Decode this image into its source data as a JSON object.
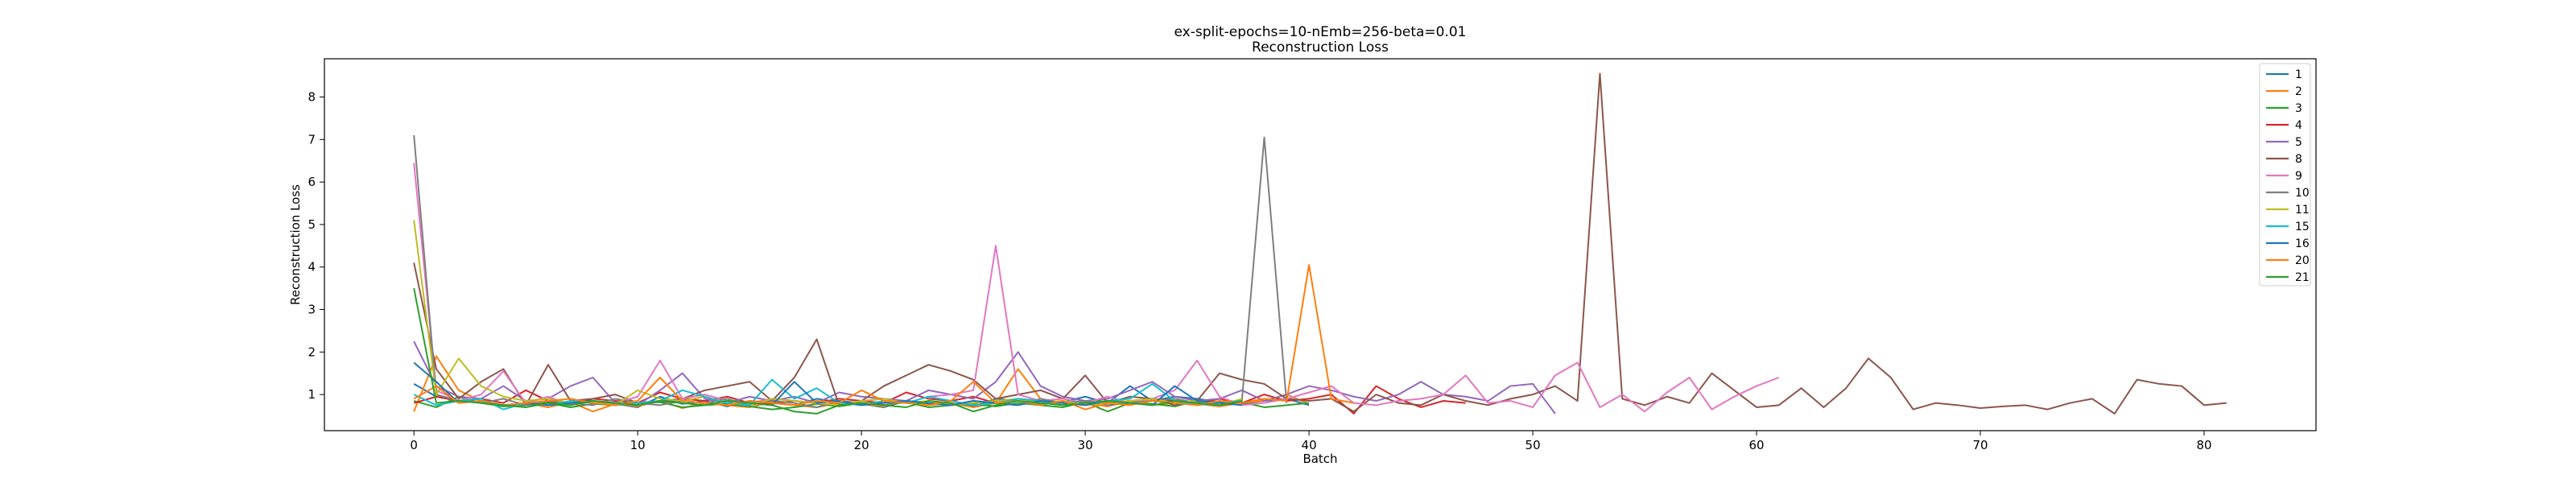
{
  "chart_data": {
    "type": "line",
    "title": "ex-split-epochs=10-nEmb=256-beta=0.01",
    "subtitle": "Reconstruction Loss",
    "xlabel": "Batch",
    "ylabel": "Reconstruction Loss",
    "xlim": [
      -4,
      85
    ],
    "ylim": [
      0.15,
      8.9
    ],
    "xticks": [
      0,
      10,
      20,
      30,
      40,
      50,
      60,
      70,
      80
    ],
    "yticks": [
      1,
      2,
      3,
      4,
      5,
      6,
      7,
      8
    ],
    "grid": false,
    "legend_position": "top-right",
    "series": [
      {
        "name": "1",
        "color": "#1f77b4",
        "values": [
          1.25,
          0.95,
          0.85,
          0.8,
          0.75,
          0.78,
          0.82,
          0.76,
          0.85,
          0.78,
          0.7,
          0.95,
          0.78,
          0.85,
          0.72,
          0.85,
          0.8,
          0.75,
          0.9,
          0.82,
          0.78,
          0.7,
          0.85,
          0.78,
          0.8,
          0.72,
          0.9,
          0.85,
          0.78,
          0.82,
          0.95,
          0.8,
          1.2,
          0.85,
          0.95,
          0.9,
          0.82,
          0.78,
          0.85,
          0.9,
          0.75
        ]
      },
      {
        "name": "2",
        "color": "#ff7f0e",
        "values": [
          0.6,
          1.9,
          1.1,
          0.85,
          0.75,
          0.8,
          0.7,
          0.82,
          0.6,
          0.78,
          0.72,
          0.85,
          0.68,
          0.8,
          0.75,
          0.7,
          0.82,
          0.75,
          0.7,
          0.8,
          0.78,
          0.72,
          0.85,
          0.75,
          0.8,
          0.7,
          0.8,
          1.6,
          0.9,
          0.75,
          0.8,
          0.72,
          0.85,
          0.75,
          0.8,
          0.78,
          0.72,
          0.8,
          0.85,
          1.0,
          0.78
        ]
      },
      {
        "name": "3",
        "color": "#2ca02c",
        "values": [
          0.85,
          0.7,
          0.95,
          0.8,
          0.72,
          0.75,
          0.8,
          0.7,
          0.78,
          0.75,
          0.8,
          0.82,
          0.7,
          0.75,
          0.78,
          0.72,
          0.65,
          0.7,
          0.78,
          0.72,
          0.8,
          0.75,
          0.82,
          0.7,
          0.75,
          0.78,
          0.72,
          0.8,
          0.75,
          0.7,
          0.82,
          0.6,
          0.8,
          0.78,
          0.72,
          0.85,
          0.75,
          0.82,
          0.7,
          0.75,
          0.8
        ]
      },
      {
        "name": "4",
        "color": "#d62728",
        "values": [
          0.8,
          0.95,
          0.85,
          0.9,
          0.8,
          1.1,
          0.85,
          0.75,
          0.9,
          0.85,
          0.8,
          1.05,
          0.9,
          0.85,
          0.95,
          0.8,
          0.78,
          0.85,
          0.8,
          0.9,
          0.85,
          0.8,
          1.05,
          0.9,
          0.85,
          0.95,
          0.8,
          0.9,
          0.85,
          0.8,
          0.75,
          0.8,
          0.85,
          0.9,
          0.85,
          0.8,
          0.9,
          0.8,
          1.0,
          0.85,
          0.9,
          1.0,
          0.55,
          1.2,
          0.9,
          0.7,
          0.85,
          0.8
        ]
      },
      {
        "name": "5",
        "color": "#9467bd",
        "values": [
          2.25,
          1.2,
          0.95,
          0.9,
          1.2,
          0.85,
          0.9,
          1.2,
          1.4,
          0.8,
          0.75,
          1.1,
          1.5,
          0.9,
          0.8,
          0.95,
          0.85,
          0.95,
          0.8,
          1.05,
          0.95,
          0.9,
          0.85,
          1.1,
          1.0,
          0.9,
          1.3,
          2.0,
          1.2,
          0.95,
          0.85,
          0.9,
          1.1,
          1.3,
          0.95,
          0.85,
          0.9,
          1.1,
          0.85,
          1.0,
          1.2,
          1.1,
          0.95,
          0.85,
          1.0,
          1.3,
          1.0,
          0.95,
          0.85,
          1.2,
          1.25,
          0.55
        ]
      },
      {
        "name": "8",
        "color": "#8c564b",
        "values": [
          4.1,
          1.6,
          0.9,
          1.3,
          1.6,
          0.75,
          1.7,
          0.85,
          0.9,
          1.0,
          0.8,
          0.85,
          0.9,
          1.1,
          1.2,
          1.3,
          0.85,
          1.4,
          2.3,
          0.75,
          0.85,
          1.2,
          1.45,
          1.7,
          1.55,
          1.35,
          0.9,
          1.0,
          1.1,
          0.9,
          1.45,
          0.8,
          0.95,
          0.9,
          0.75,
          0.85,
          1.5,
          1.35,
          1.25,
          0.9,
          0.85,
          0.9,
          0.6,
          1.0,
          0.8,
          0.75,
          1.0,
          0.85,
          0.75,
          0.9,
          1.0,
          1.2,
          0.85,
          8.55,
          0.9,
          0.75,
          0.95,
          0.8,
          1.5,
          1.1,
          0.7,
          0.75,
          1.15,
          0.7,
          1.15,
          1.85,
          1.4,
          0.65,
          0.8,
          0.75,
          0.68,
          0.72,
          0.75,
          0.65,
          0.8,
          0.9,
          0.55,
          1.35,
          1.25,
          1.2,
          0.75,
          0.8
        ]
      },
      {
        "name": "9",
        "color": "#e377c2",
        "values": [
          6.45,
          1.1,
          0.85,
          1.0,
          1.55,
          0.8,
          0.95,
          0.75,
          0.85,
          0.8,
          0.95,
          1.8,
          0.9,
          1.0,
          0.85,
          0.8,
          0.9,
          0.85,
          0.8,
          0.75,
          0.85,
          0.9,
          0.8,
          0.95,
          1.0,
          1.1,
          4.5,
          1.0,
          0.85,
          0.9,
          0.8,
          0.95,
          0.8,
          0.9,
          1.1,
          1.8,
          0.95,
          0.75,
          0.8,
          0.9,
          1.05,
          1.2,
          0.8,
          0.75,
          0.85,
          0.9,
          1.0,
          1.45,
          0.8,
          0.85,
          0.7,
          1.45,
          1.75,
          0.7,
          1.0,
          0.6,
          1.05,
          1.4,
          0.65,
          0.95,
          1.2,
          1.4
        ]
      },
      {
        "name": "10",
        "color": "#7f7f7f",
        "values": [
          7.1,
          1.0,
          0.85,
          0.8,
          0.9,
          0.75,
          0.85,
          0.8,
          0.75,
          0.9,
          0.8,
          0.75,
          0.85,
          0.8,
          0.9,
          0.75,
          0.85,
          0.8,
          0.7,
          0.85,
          0.8,
          0.75,
          0.85,
          0.8,
          0.75,
          0.85,
          0.8,
          0.75,
          0.9,
          0.8,
          0.85,
          0.75,
          0.8,
          0.85,
          0.9,
          0.8,
          0.75,
          0.85,
          7.05,
          0.8
        ]
      },
      {
        "name": "11",
        "color": "#bcbd22",
        "values": [
          5.1,
          1.0,
          1.85,
          1.2,
          0.95,
          0.85,
          0.9,
          0.8,
          0.85,
          0.75,
          1.1,
          0.9,
          0.85,
          0.95,
          0.8,
          0.75,
          0.9,
          0.85,
          0.8,
          0.75,
          0.85,
          0.9,
          0.8,
          0.85,
          0.75,
          0.8,
          0.85,
          0.9,
          0.8,
          0.85,
          0.75,
          0.8,
          0.85,
          0.9,
          0.8,
          0.85,
          0.75,
          0.9
        ]
      },
      {
        "name": "15",
        "color": "#17becf",
        "values": [
          1.0,
          0.75,
          0.85,
          0.9,
          0.65,
          0.8,
          0.75,
          0.85,
          0.8,
          0.75,
          0.8,
          0.85,
          1.1,
          0.95,
          0.8,
          0.75,
          1.35,
          0.9,
          1.15,
          0.8,
          0.75,
          0.85,
          0.8,
          0.95,
          0.85,
          0.75,
          0.8,
          0.9,
          0.85,
          0.75,
          0.8,
          0.85,
          0.9,
          1.25,
          0.85,
          0.75,
          0.8,
          0.85
        ]
      },
      {
        "name": "16",
        "color": "#1f77b4",
        "values": [
          1.75,
          1.3,
          0.8,
          0.85,
          0.75,
          0.8,
          0.75,
          0.8,
          0.85,
          0.8,
          0.75,
          0.85,
          0.8,
          0.75,
          0.85,
          0.8,
          0.75,
          1.3,
          0.8,
          0.85,
          0.75,
          0.8,
          0.85,
          0.8,
          0.75,
          0.85,
          0.8,
          0.75,
          0.85,
          0.8,
          0.75,
          0.85,
          0.8,
          0.75,
          1.2,
          0.85,
          0.8,
          0.75
        ]
      },
      {
        "name": "20",
        "color": "#ff7f0e",
        "values": [
          0.9,
          1.2,
          0.8,
          0.85,
          0.75,
          0.8,
          0.85,
          0.9,
          0.8,
          0.75,
          0.85,
          1.4,
          0.85,
          0.8,
          0.75,
          0.85,
          0.8,
          0.75,
          0.85,
          0.8,
          1.1,
          0.85,
          0.8,
          0.75,
          0.85,
          1.3,
          0.8,
          0.85,
          0.75,
          0.85,
          0.65,
          0.8,
          0.75,
          0.85,
          0.8,
          0.75,
          0.85,
          0.8,
          0.9,
          0.85,
          4.05,
          0.9,
          0.8
        ]
      },
      {
        "name": "21",
        "color": "#2ca02c",
        "values": [
          3.5,
          0.8,
          0.85,
          0.8,
          0.75,
          0.7,
          0.8,
          0.75,
          0.85,
          0.8,
          0.75,
          0.85,
          0.8,
          0.75,
          0.85,
          0.8,
          0.75,
          0.6,
          0.55,
          0.75,
          0.8,
          0.75,
          0.7,
          0.85,
          0.8,
          0.6,
          0.75,
          0.85,
          0.8,
          0.75,
          0.8,
          0.85,
          0.8,
          0.75,
          0.85,
          0.8,
          0.75,
          0.85
        ]
      }
    ]
  }
}
